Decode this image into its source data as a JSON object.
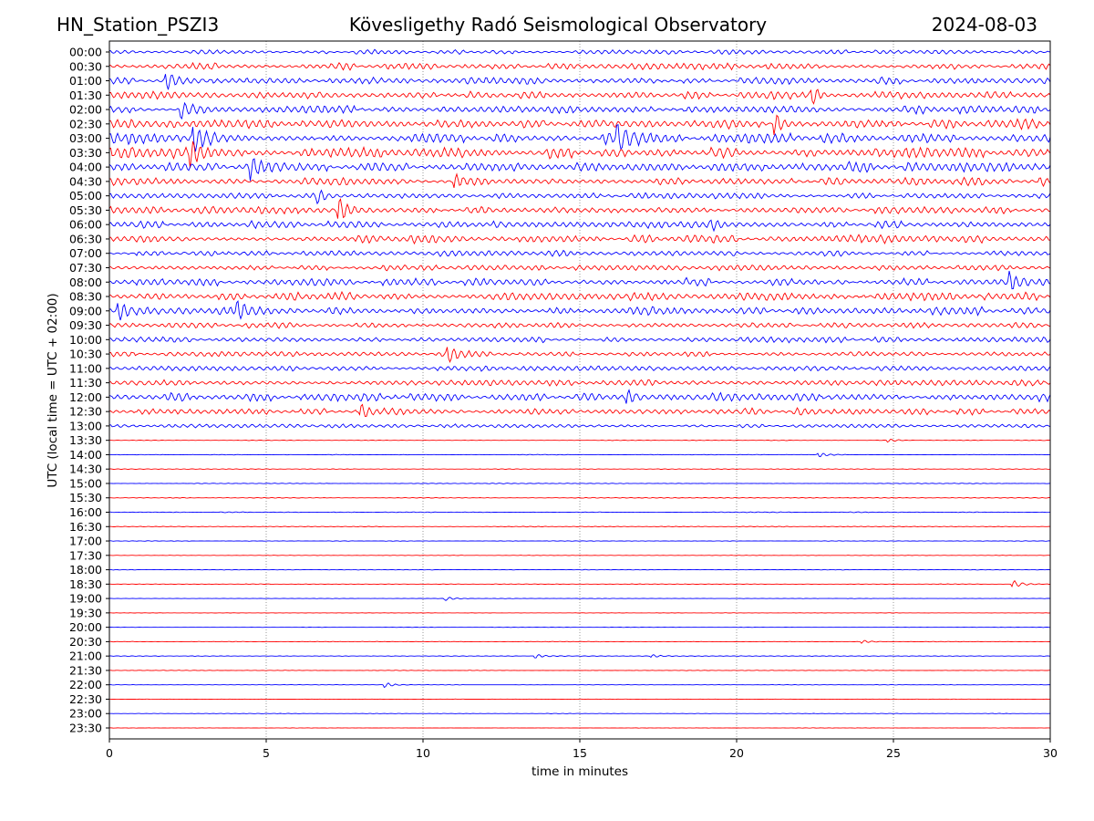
{
  "header": {
    "station": "HN_Station_PSZI3",
    "title": "Kövesligethy Radó Seismological Observatory",
    "date": "2024-08-03"
  },
  "chart_data": {
    "type": "line",
    "title": "Kövesligethy Radó Seismological Observatory",
    "xlabel": "time in minutes",
    "ylabel": "UTC (local time = UTC + 02:00)",
    "xlim": [
      0,
      30
    ],
    "xticks": [
      "0",
      "5",
      "10",
      "15",
      "20",
      "25",
      "30"
    ],
    "grid": "vertical dotted at every 5 minutes",
    "colors": {
      "even_row": "#0000ff",
      "odd_row": "#ff0000"
    },
    "rows": [
      "00:00",
      "00:30",
      "01:00",
      "01:30",
      "02:00",
      "02:30",
      "03:00",
      "03:30",
      "04:00",
      "04:30",
      "05:00",
      "05:30",
      "06:00",
      "06:30",
      "07:00",
      "07:30",
      "08:00",
      "08:30",
      "09:00",
      "09:30",
      "10:00",
      "10:30",
      "11:00",
      "11:30",
      "12:00",
      "12:30",
      "13:00",
      "13:30",
      "14:00",
      "14:30",
      "15:00",
      "15:30",
      "16:00",
      "16:30",
      "17:00",
      "17:30",
      "18:00",
      "18:30",
      "19:00",
      "19:30",
      "20:00",
      "20:30",
      "21:00",
      "21:30",
      "22:00",
      "22:30",
      "23:00",
      "23:30"
    ],
    "noise_level": [
      0.25,
      0.35,
      0.4,
      0.4,
      0.45,
      0.5,
      0.6,
      0.6,
      0.55,
      0.45,
      0.3,
      0.4,
      0.4,
      0.45,
      0.3,
      0.3,
      0.4,
      0.45,
      0.45,
      0.3,
      0.3,
      0.3,
      0.3,
      0.35,
      0.45,
      0.35,
      0.2,
      0.03,
      0.03,
      0.03,
      0.04,
      0.04,
      0.04,
      0.04,
      0.03,
      0.02,
      0.03,
      0.03,
      0.02,
      0.02,
      0.02,
      0.03,
      0.03,
      0.03,
      0.02,
      0.02,
      0.02,
      0.02
    ],
    "events": [
      {
        "row": "01:00",
        "minute": 1.8,
        "amp": 1.2
      },
      {
        "row": "01:30",
        "minute": 22.4,
        "amp": 1.0
      },
      {
        "row": "02:00",
        "minute": 2.3,
        "amp": 1.1
      },
      {
        "row": "02:30",
        "minute": 21.2,
        "amp": 1.3
      },
      {
        "row": "03:00",
        "minute": 2.7,
        "amp": 1.4
      },
      {
        "row": "03:00",
        "minute": 16.2,
        "amp": 1.3
      },
      {
        "row": "03:30",
        "minute": 2.6,
        "amp": 1.3
      },
      {
        "row": "04:00",
        "minute": 4.5,
        "amp": 1.1
      },
      {
        "row": "04:30",
        "minute": 11.0,
        "amp": 0.9
      },
      {
        "row": "05:00",
        "minute": 6.6,
        "amp": 0.8
      },
      {
        "row": "05:30",
        "minute": 7.3,
        "amp": 1.6
      },
      {
        "row": "06:00",
        "minute": 19.2,
        "amp": 0.9
      },
      {
        "row": "08:00",
        "minute": 28.7,
        "amp": 1.0
      },
      {
        "row": "09:00",
        "minute": 0.3,
        "amp": 1.2
      },
      {
        "row": "09:00",
        "minute": 4.1,
        "amp": 1.0
      },
      {
        "row": "10:30",
        "minute": 10.8,
        "amp": 0.9
      },
      {
        "row": "12:00",
        "minute": 16.5,
        "amp": 0.9
      },
      {
        "row": "12:30",
        "minute": 8.0,
        "amp": 1.0
      },
      {
        "row": "14:00",
        "minute": 22.6,
        "amp": 0.3
      },
      {
        "row": "18:30",
        "minute": 28.8,
        "amp": 0.5
      },
      {
        "row": "19:00",
        "minute": 10.7,
        "amp": 0.25
      },
      {
        "row": "21:00",
        "minute": 13.6,
        "amp": 0.25
      },
      {
        "row": "21:00",
        "minute": 17.3,
        "amp": 0.2
      },
      {
        "row": "22:00",
        "minute": 8.8,
        "amp": 0.3
      },
      {
        "row": "20:30",
        "minute": 24.0,
        "amp": 0.2
      },
      {
        "row": "13:30",
        "minute": 24.8,
        "amp": 0.2
      }
    ]
  }
}
